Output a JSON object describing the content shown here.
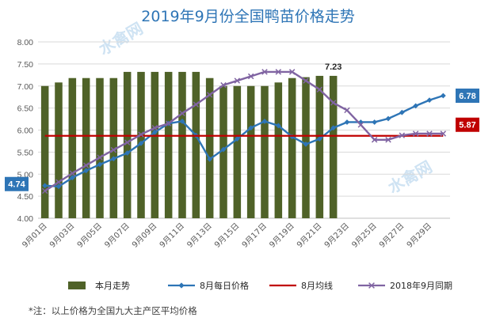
{
  "chart_data": {
    "type": "bar",
    "title": "2019年9月份全国鸭苗价格走势",
    "ylim": [
      4.0,
      8.0
    ],
    "ytick_labels": [
      "4.00",
      "4.50",
      "5.00",
      "5.50",
      "6.00",
      "6.50",
      "7.00",
      "7.50",
      "8.00"
    ],
    "categories": [
      "9月01日",
      "9月02日",
      "9月03日",
      "9月04日",
      "9月05日",
      "9月06日",
      "9月07日",
      "9月08日",
      "9月09日",
      "9月10日",
      "9月11日",
      "9月12日",
      "9月13日",
      "9月14日",
      "9月15日",
      "9月16日",
      "9月17日",
      "9月18日",
      "9月19日",
      "9月20日",
      "9月21日",
      "9月22日",
      "9月23日",
      "9月24日",
      "9月25日",
      "9月26日",
      "9月27日",
      "9月28日",
      "9月29日",
      "9月30日"
    ],
    "xtick_labels": [
      "9月01日",
      "9月03日",
      "9月05日",
      "9月07日",
      "9月09日",
      "9月11日",
      "9月13日",
      "9月15日",
      "9月17日",
      "9月19日",
      "9月21日",
      "9月23日",
      "9月25日",
      "9月27日",
      "9月29日"
    ],
    "series": [
      {
        "name": "本月走势",
        "type": "bar",
        "color": "#4f6228",
        "values": [
          7.0,
          7.08,
          7.18,
          7.18,
          7.18,
          7.18,
          7.32,
          7.32,
          7.32,
          7.32,
          7.32,
          7.32,
          7.18,
          7.0,
          7.0,
          7.0,
          7.0,
          7.08,
          7.18,
          7.2,
          7.23,
          7.23,
          null,
          null,
          null,
          null,
          null,
          null,
          null,
          null
        ]
      },
      {
        "name": "8月每日价格",
        "type": "line",
        "color": "#2e75b6",
        "marker": "diamond",
        "values": [
          4.74,
          4.72,
          4.92,
          5.08,
          5.22,
          5.35,
          5.48,
          5.7,
          5.95,
          6.15,
          6.2,
          5.88,
          5.34,
          5.56,
          5.8,
          6.05,
          6.2,
          6.1,
          5.85,
          5.68,
          5.8,
          6.05,
          6.18,
          6.18,
          6.18,
          6.26,
          6.4,
          6.55,
          6.68,
          6.78
        ]
      },
      {
        "name": "8月均线",
        "type": "line",
        "color": "#c00000",
        "values": [
          5.87,
          5.87,
          5.87,
          5.87,
          5.87,
          5.87,
          5.87,
          5.87,
          5.87,
          5.87,
          5.87,
          5.87,
          5.87,
          5.87,
          5.87,
          5.87,
          5.87,
          5.87,
          5.87,
          5.87,
          5.87,
          5.87,
          5.87,
          5.87,
          5.87,
          5.87,
          5.87,
          5.87,
          5.87,
          5.87
        ]
      },
      {
        "name": "2018年9月同期",
        "type": "line",
        "color": "#8064a2",
        "marker": "x",
        "values": [
          4.62,
          4.82,
          5.02,
          5.2,
          5.38,
          5.55,
          5.72,
          5.9,
          6.05,
          6.15,
          6.38,
          6.58,
          6.8,
          7.02,
          7.12,
          7.22,
          7.32,
          7.32,
          7.32,
          7.12,
          6.92,
          6.62,
          6.45,
          6.12,
          5.78,
          5.78,
          5.88,
          5.92,
          5.92,
          5.92
        ]
      }
    ],
    "annotations": [
      {
        "text": "7.23"
      },
      {
        "text": "4.74"
      },
      {
        "text": "6.78"
      },
      {
        "text": "5.87"
      }
    ],
    "grid": true,
    "legend_position": "bottom"
  },
  "watermark": {
    "text_top": "水禽网",
    "text_right": "水禽网"
  },
  "note": "*注：以上价格为全国九大主产区平均价格"
}
